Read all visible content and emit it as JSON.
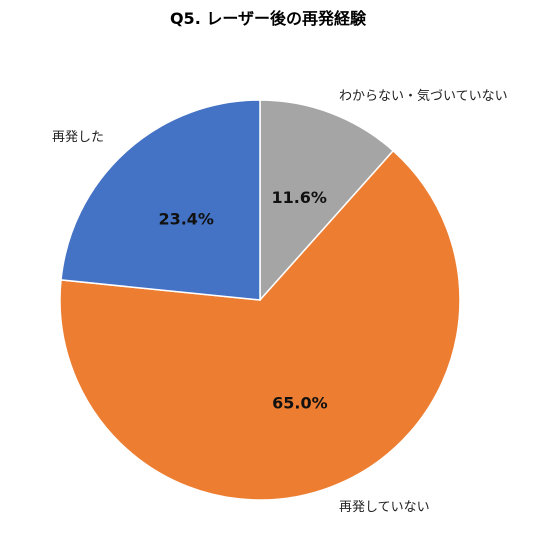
{
  "chart_data": {
    "type": "pie",
    "title": "Q5. レーザー後の再発経験",
    "categories": [
      "わからない・気づいていない",
      "再発していない",
      "再発した"
    ],
    "values": [
      11.6,
      65.0,
      23.4
    ],
    "value_labels": [
      "11.6%",
      "65.0%",
      "23.4%"
    ],
    "colors": [
      "#A5A5A5",
      "#ED7D31",
      "#4472C4"
    ],
    "start_angle": "12 o'clock",
    "direction": "clockwise",
    "legend": "none (category labels outside slices)"
  }
}
